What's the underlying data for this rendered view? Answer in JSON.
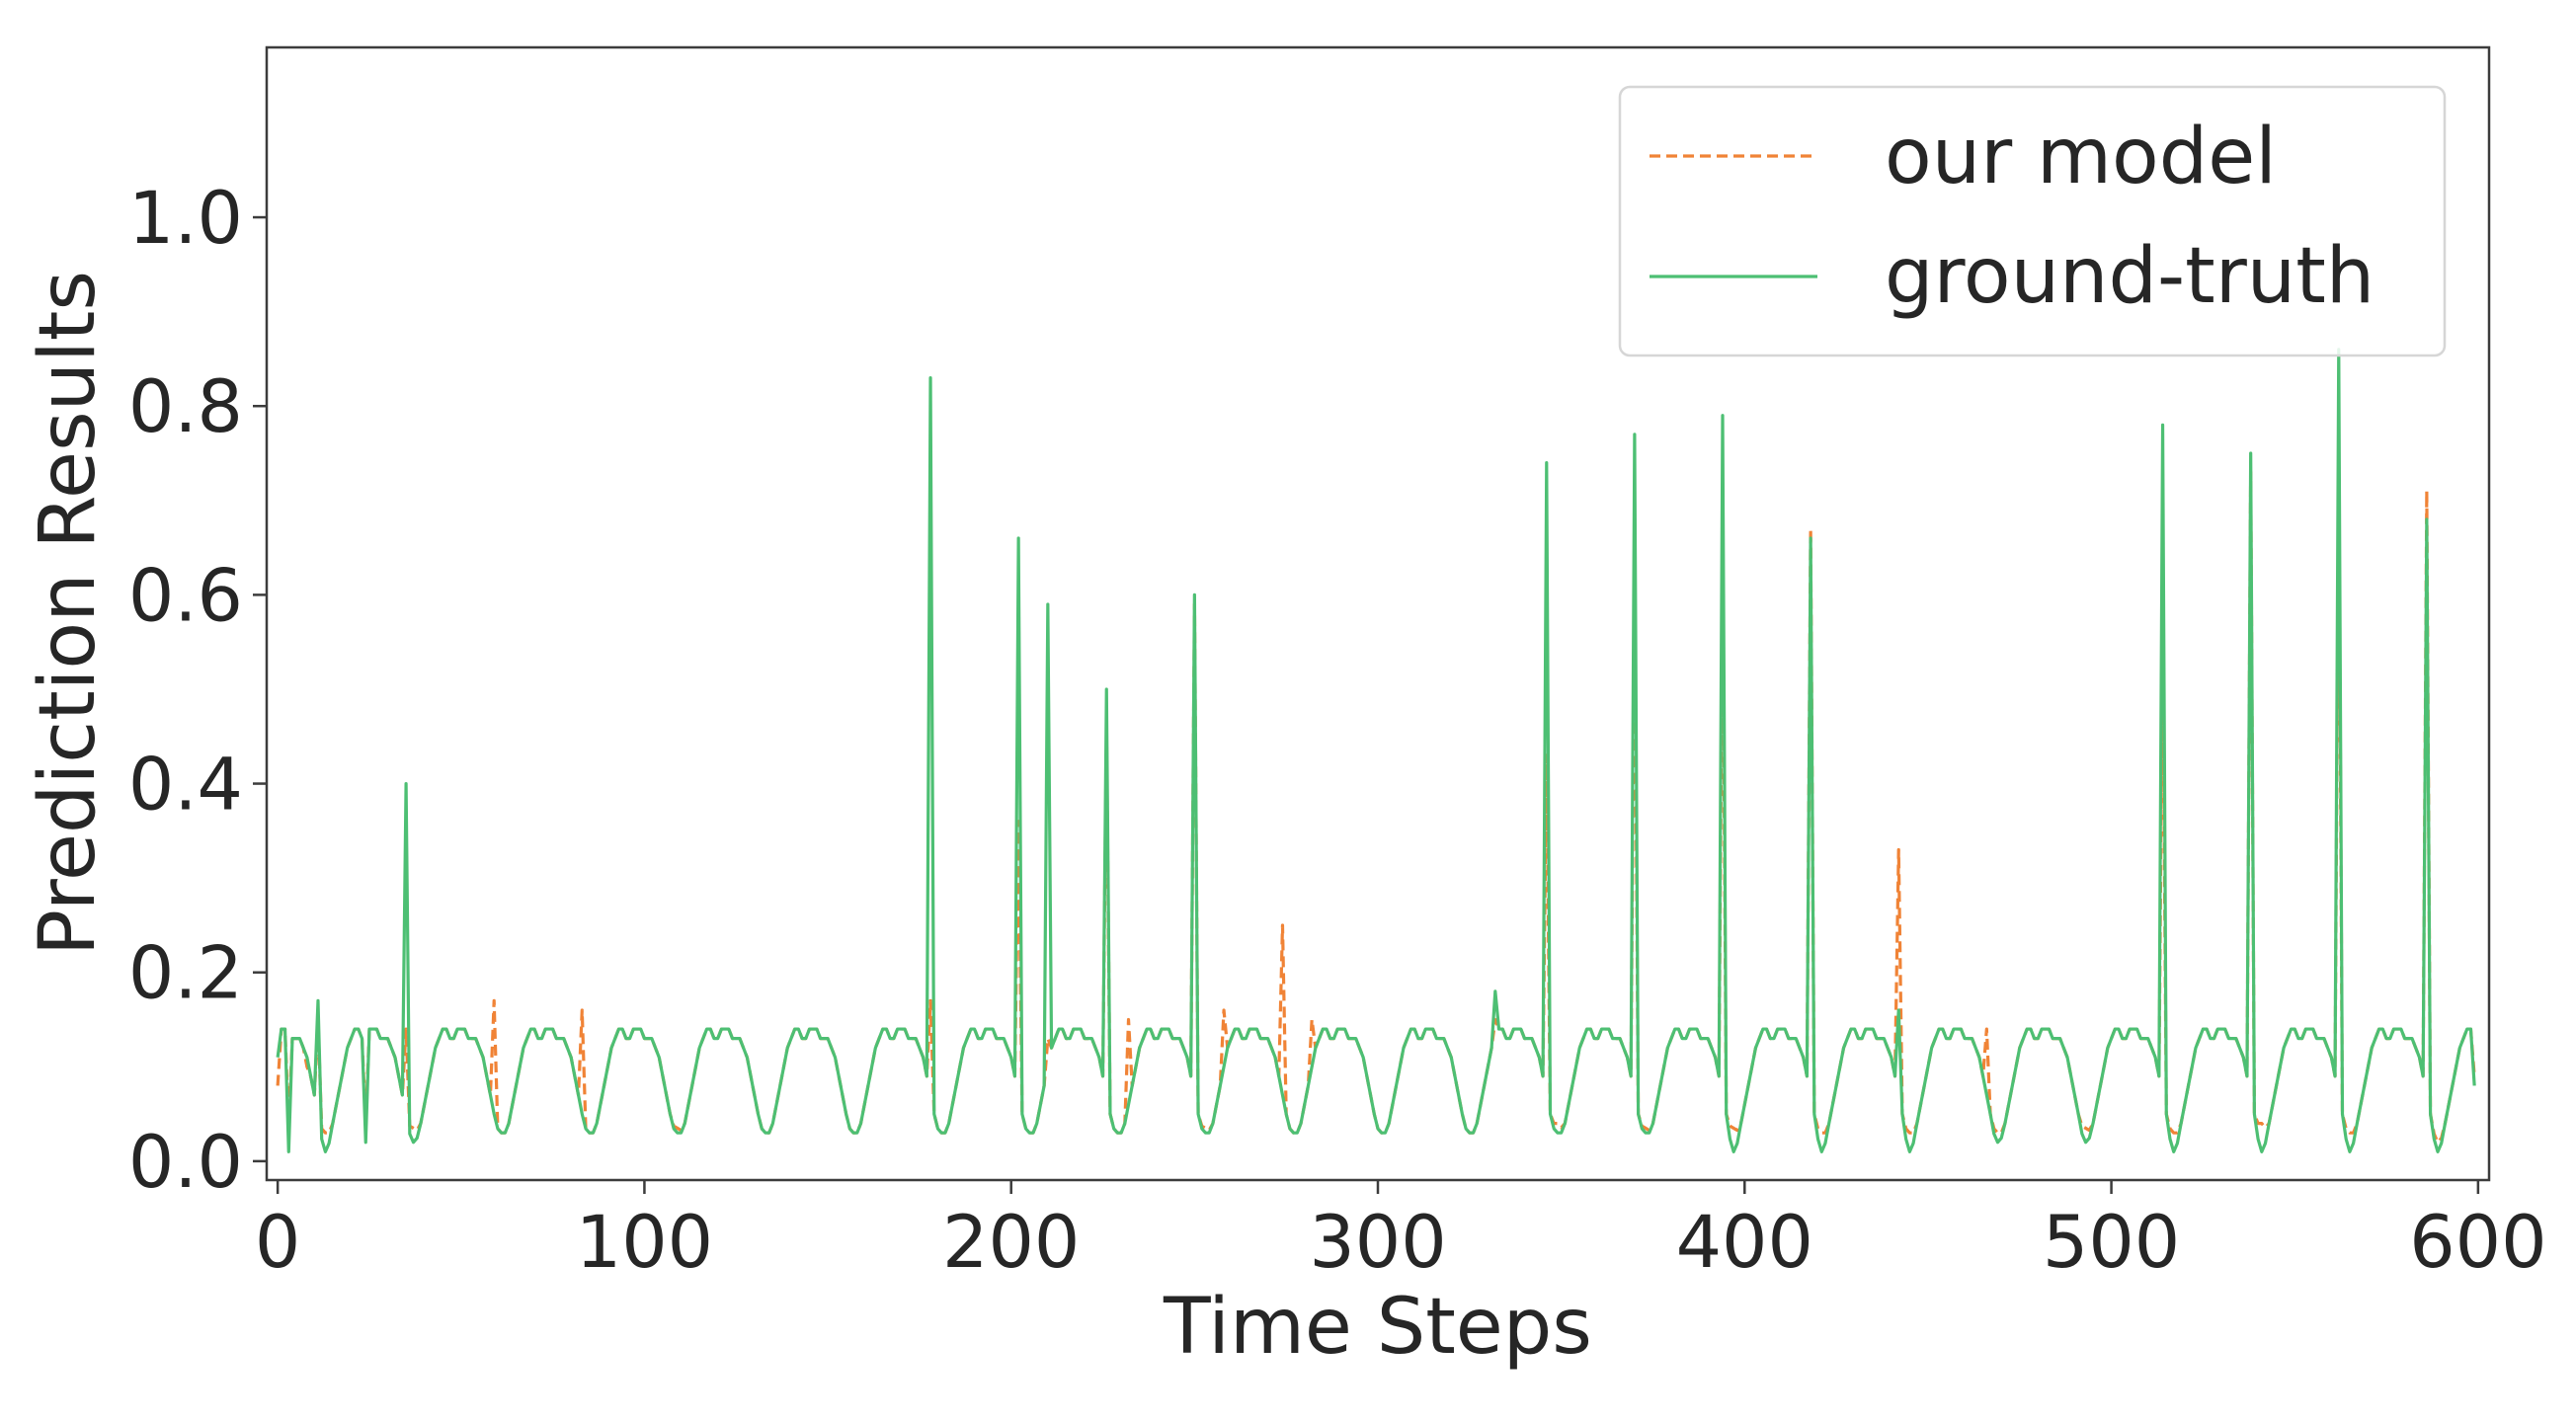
{
  "chart_data": {
    "type": "line",
    "title": "",
    "xlabel": "Time Steps",
    "ylabel": "Prediction Results",
    "xlim": [
      -3,
      603
    ],
    "ylim": [
      -0.02,
      1.18
    ],
    "xticks": [
      0,
      100,
      200,
      300,
      400,
      500,
      600
    ],
    "xtick_labels": [
      "0",
      "100",
      "200",
      "300",
      "400",
      "500",
      "600"
    ],
    "yticks": [
      0.0,
      0.2,
      0.4,
      0.6,
      0.8,
      1.0
    ],
    "ytick_labels": [
      "0.0",
      "0.2",
      "0.4",
      "0.6",
      "0.8",
      "1.0"
    ],
    "grid": false,
    "legend_position": "top-right",
    "baseline_cycle": {
      "period": 24,
      "hourly_profile": [
        0.13,
        0.14,
        0.14,
        0.14,
        0.13,
        0.13,
        0.13,
        0.12,
        0.11,
        0.09,
        0.07,
        0.05,
        0.04,
        0.03,
        0.03,
        0.04,
        0.06,
        0.08,
        0.1,
        0.12,
        0.13,
        0.14,
        0.14,
        0.13
      ]
    },
    "series": [
      {
        "name": "our model",
        "color": "#f08336",
        "style": "dashed",
        "valley_depths": [
          0.03,
          0.035,
          0.03,
          0.03,
          0.035,
          0.03,
          0.03,
          0.03,
          0.03,
          0.03,
          0.035,
          0.03,
          0.03,
          0.03,
          0.04,
          0.035,
          0.035,
          0.03,
          0.03,
          0.03,
          0.035,
          0.03,
          0.04,
          0.03,
          0.02
        ],
        "key_points": [
          {
            "x": 0,
            "y": 0.08
          },
          {
            "x": 3,
            "y": 0.04
          },
          {
            "x": 8,
            "y": 0.1
          },
          {
            "x": 11,
            "y": 0.15
          },
          {
            "x": 24,
            "y": 0.04
          },
          {
            "x": 35,
            "y": 0.14
          },
          {
            "x": 59,
            "y": 0.17
          },
          {
            "x": 83,
            "y": 0.16
          },
          {
            "x": 178,
            "y": 0.17
          },
          {
            "x": 202,
            "y": 0.36
          },
          {
            "x": 210,
            "y": 0.13
          },
          {
            "x": 226,
            "y": 0.46
          },
          {
            "x": 232,
            "y": 0.15
          },
          {
            "x": 250,
            "y": 0.59
          },
          {
            "x": 258,
            "y": 0.16
          },
          {
            "x": 274,
            "y": 0.25
          },
          {
            "x": 282,
            "y": 0.15
          },
          {
            "x": 332,
            "y": 0.15
          },
          {
            "x": 346,
            "y": 0.43
          },
          {
            "x": 370,
            "y": 0.61
          },
          {
            "x": 394,
            "y": 0.63
          },
          {
            "x": 418,
            "y": 0.67
          },
          {
            "x": 442,
            "y": 0.33
          },
          {
            "x": 466,
            "y": 0.14
          },
          {
            "x": 514,
            "y": 0.56
          },
          {
            "x": 538,
            "y": 0.73
          },
          {
            "x": 562,
            "y": 0.74
          },
          {
            "x": 586,
            "y": 0.71
          },
          {
            "x": 599,
            "y": 0.09
          }
        ]
      },
      {
        "name": "ground-truth",
        "color": "#4dbf73",
        "style": "solid",
        "valley_depths": [
          0.01,
          0.02,
          0.03,
          0.03,
          0.03,
          0.03,
          0.03,
          0.03,
          0.03,
          0.03,
          0.03,
          0.03,
          0.03,
          0.03,
          0.03,
          0.03,
          0.01,
          0.01,
          0.01,
          0.02,
          0.02,
          0.01,
          0.01,
          0.01,
          0.01
        ],
        "key_points": [
          {
            "x": 0,
            "y": 0.11
          },
          {
            "x": 3,
            "y": 0.01
          },
          {
            "x": 11,
            "y": 0.17
          },
          {
            "x": 24,
            "y": 0.02
          },
          {
            "x": 35,
            "y": 0.4
          },
          {
            "x": 178,
            "y": 0.83
          },
          {
            "x": 202,
            "y": 0.66
          },
          {
            "x": 210,
            "y": 0.59
          },
          {
            "x": 226,
            "y": 0.5
          },
          {
            "x": 250,
            "y": 0.6
          },
          {
            "x": 332,
            "y": 0.18
          },
          {
            "x": 346,
            "y": 0.74
          },
          {
            "x": 370,
            "y": 0.77
          },
          {
            "x": 394,
            "y": 0.79
          },
          {
            "x": 418,
            "y": 0.66
          },
          {
            "x": 442,
            "y": 0.16
          },
          {
            "x": 514,
            "y": 0.78
          },
          {
            "x": 538,
            "y": 0.75
          },
          {
            "x": 562,
            "y": 0.86
          },
          {
            "x": 586,
            "y": 0.68
          },
          {
            "x": 599,
            "y": 0.08
          }
        ]
      }
    ]
  }
}
